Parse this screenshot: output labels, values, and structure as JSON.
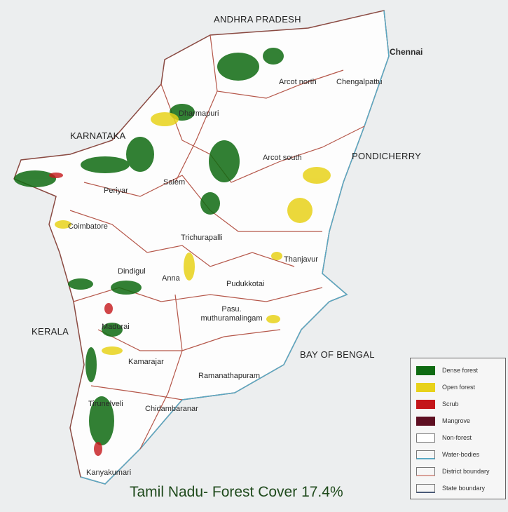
{
  "title": "Tamil Nadu- Forest Cover 17.4%",
  "regions": {
    "neighbors": [
      "ANDHRA PRADESH",
      "KARNATAKA",
      "KERALA",
      "PONDICHERRY",
      "BAY OF BENGAL"
    ],
    "cities": [
      "Chennai"
    ],
    "districts": [
      "Arcot north",
      "Chengalpattu",
      "Dharmapuri",
      "Arcot south",
      "Salem",
      "Periyar",
      "Coimbatore",
      "Trichurapalli",
      "Thanjavur",
      "Dindigul",
      "Anna",
      "Pudukkotai",
      "Pasu. muthuramalingam",
      "Madurai",
      "Kamarajar",
      "Ramanathapuram",
      "Tirunelveli",
      "Chidambaranar",
      "Kanyakumari"
    ]
  },
  "legend": [
    {
      "label": "Dense forest",
      "color": "#0f6b12"
    },
    {
      "label": "Open forest",
      "color": "#e8d21a"
    },
    {
      "label": "Scrub",
      "color": "#c4161a"
    },
    {
      "label": "Mangrove",
      "color": "#5e0f22"
    },
    {
      "label": "Non-forest",
      "color": "#ffffff"
    },
    {
      "label": "Water-bodies",
      "color": "#5aa9c4"
    },
    {
      "label": "District boundary",
      "color": "#b5574a"
    },
    {
      "label": "State boundary",
      "color": "#4a5a78"
    }
  ]
}
